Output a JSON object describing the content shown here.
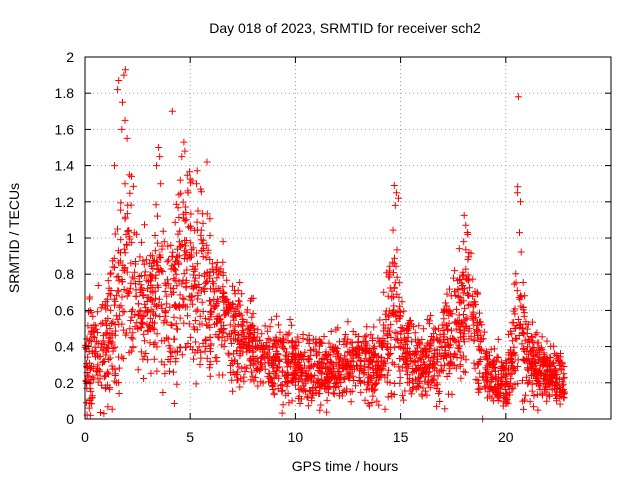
{
  "chart_data": {
    "type": "scatter",
    "title": "Day 018 of 2023, SRMTID for receiver sch2",
    "xlabel": "GPS time / hours",
    "ylabel": "SRMTID / TECUs",
    "xlim": [
      0,
      25
    ],
    "ylim": [
      0,
      2
    ],
    "xticks": [
      0,
      5,
      10,
      15,
      20
    ],
    "xtick_labels": [
      "0",
      "5",
      "10",
      "15",
      "20"
    ],
    "yticks": [
      0,
      0.2,
      0.4,
      0.6,
      0.8,
      1.0,
      1.2,
      1.4,
      1.6,
      1.8,
      2.0
    ],
    "ytick_labels": [
      "0",
      "0.2",
      "0.4",
      "0.6",
      "0.8",
      "1",
      "1.2",
      "1.4",
      "1.6",
      "1.8",
      "2"
    ],
    "grid": true,
    "marker": "+",
    "color": "#ff0000",
    "x_data_range": [
      0,
      22.8
    ],
    "series": [
      {
        "name": "sch2",
        "envelope": [
          [
            0.0,
            0.32,
            0.14
          ],
          [
            0.5,
            0.35,
            0.15
          ],
          [
            1.0,
            0.38,
            0.16
          ],
          [
            1.5,
            0.65,
            0.25
          ],
          [
            1.9,
            0.85,
            0.32
          ],
          [
            2.5,
            0.7,
            0.22
          ],
          [
            3.0,
            0.62,
            0.18
          ],
          [
            3.5,
            0.72,
            0.25
          ],
          [
            4.0,
            0.55,
            0.18
          ],
          [
            4.5,
            0.78,
            0.25
          ],
          [
            5.0,
            0.85,
            0.25
          ],
          [
            5.5,
            0.78,
            0.22
          ],
          [
            6.0,
            0.65,
            0.18
          ],
          [
            6.5,
            0.55,
            0.15
          ],
          [
            7.0,
            0.5,
            0.14
          ],
          [
            7.5,
            0.45,
            0.12
          ],
          [
            8.0,
            0.4,
            0.1
          ],
          [
            8.5,
            0.35,
            0.1
          ],
          [
            9.0,
            0.32,
            0.1
          ],
          [
            9.5,
            0.3,
            0.1
          ],
          [
            10.0,
            0.3,
            0.1
          ],
          [
            10.5,
            0.25,
            0.08
          ],
          [
            11.0,
            0.28,
            0.1
          ],
          [
            11.5,
            0.25,
            0.08
          ],
          [
            12.0,
            0.28,
            0.09
          ],
          [
            12.5,
            0.3,
            0.1
          ],
          [
            13.0,
            0.3,
            0.1
          ],
          [
            13.5,
            0.3,
            0.1
          ],
          [
            14.0,
            0.3,
            0.1
          ],
          [
            14.5,
            0.5,
            0.22
          ],
          [
            14.8,
            0.6,
            0.28
          ],
          [
            15.2,
            0.35,
            0.12
          ],
          [
            15.5,
            0.35,
            0.12
          ],
          [
            16.0,
            0.3,
            0.1
          ],
          [
            16.5,
            0.35,
            0.12
          ],
          [
            17.0,
            0.4,
            0.14
          ],
          [
            17.5,
            0.5,
            0.16
          ],
          [
            18.0,
            0.65,
            0.2
          ],
          [
            18.3,
            0.7,
            0.2
          ],
          [
            18.6,
            0.45,
            0.16
          ],
          [
            19.0,
            0.28,
            0.1
          ],
          [
            19.5,
            0.22,
            0.08
          ],
          [
            20.0,
            0.22,
            0.08
          ],
          [
            20.4,
            0.45,
            0.18
          ],
          [
            20.6,
            0.6,
            0.25
          ],
          [
            21.0,
            0.35,
            0.12
          ],
          [
            21.5,
            0.28,
            0.09
          ],
          [
            22.0,
            0.25,
            0.08
          ],
          [
            22.8,
            0.2,
            0.06
          ]
        ],
        "peaks": [
          [
            1.92,
            1.93
          ],
          [
            1.85,
            1.9
          ],
          [
            1.55,
            1.82
          ],
          [
            1.6,
            1.87
          ],
          [
            1.78,
            1.75
          ],
          [
            1.9,
            1.65
          ],
          [
            2.0,
            1.55
          ],
          [
            1.4,
            1.4
          ],
          [
            1.75,
            1.6
          ],
          [
            1.9,
            1.3
          ],
          [
            3.5,
            1.5
          ],
          [
            3.55,
            1.45
          ],
          [
            3.4,
            1.4
          ],
          [
            3.6,
            1.3
          ],
          [
            4.15,
            1.7
          ],
          [
            4.7,
            1.53
          ],
          [
            4.75,
            1.48
          ],
          [
            4.6,
            1.45
          ],
          [
            4.9,
            1.25
          ],
          [
            5.8,
            1.42
          ],
          [
            5.3,
            1.3
          ],
          [
            5.5,
            1.27
          ],
          [
            14.7,
            1.29
          ],
          [
            14.8,
            1.25
          ],
          [
            14.9,
            1.22
          ],
          [
            14.75,
            1.18
          ],
          [
            18.1,
            1.07
          ],
          [
            18.2,
            1.02
          ],
          [
            18.0,
            0.98
          ],
          [
            20.6,
            1.78
          ],
          [
            20.55,
            1.25
          ],
          [
            20.7,
            1.2
          ],
          [
            20.65,
            1.03
          ],
          [
            18.9,
            0.0
          ],
          [
            0.9,
            0.03
          ]
        ],
        "point_count": 2600
      }
    ]
  }
}
